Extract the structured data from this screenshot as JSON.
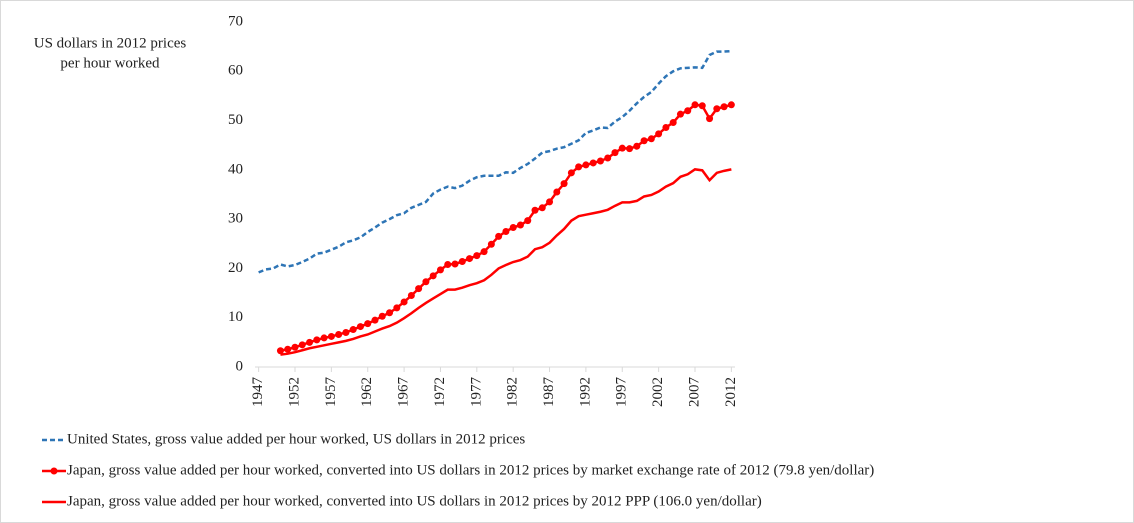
{
  "chart_data": {
    "type": "line",
    "ylabel": [
      "US dollars in 2012 prices",
      "per hour worked"
    ],
    "x": [
      1947,
      1948,
      1949,
      1950,
      1951,
      1952,
      1953,
      1954,
      1955,
      1956,
      1957,
      1958,
      1959,
      1960,
      1961,
      1962,
      1963,
      1964,
      1965,
      1966,
      1967,
      1968,
      1969,
      1970,
      1971,
      1972,
      1973,
      1974,
      1975,
      1976,
      1977,
      1978,
      1979,
      1980,
      1981,
      1982,
      1983,
      1984,
      1985,
      1986,
      1987,
      1988,
      1989,
      1990,
      1991,
      1992,
      1993,
      1994,
      1995,
      1996,
      1997,
      1998,
      1999,
      2000,
      2001,
      2002,
      2003,
      2004,
      2005,
      2006,
      2007,
      2008,
      2009,
      2010,
      2011,
      2012
    ],
    "xlim": [
      1946.5,
      2012.5
    ],
    "xticks": [
      1947,
      1952,
      1957,
      1962,
      1967,
      1972,
      1977,
      1982,
      1987,
      1992,
      1997,
      2002,
      2007,
      2012
    ],
    "ylim": [
      0,
      70
    ],
    "yticks": [
      0,
      10,
      20,
      30,
      40,
      50,
      60,
      70
    ],
    "series": [
      {
        "name": "United States, gross value added per hour worked, US dollars in 2012 prices",
        "color": "#2e75b6",
        "style": "dashed",
        "marker": false,
        "values": [
          19.2,
          19.8,
          20.0,
          20.8,
          20.4,
          20.7,
          21.3,
          22.0,
          23.0,
          23.2,
          23.8,
          24.4,
          25.3,
          25.7,
          26.3,
          27.4,
          28.3,
          29.3,
          30.0,
          30.8,
          31.2,
          32.3,
          32.9,
          33.5,
          35.2,
          36.0,
          36.6,
          36.3,
          36.8,
          37.8,
          38.5,
          38.8,
          38.8,
          38.8,
          39.5,
          39.4,
          40.4,
          41.2,
          42.3,
          43.5,
          43.8,
          44.3,
          44.6,
          45.3,
          46.0,
          47.5,
          48.0,
          48.6,
          48.5,
          49.8,
          50.7,
          52.0,
          53.5,
          54.8,
          55.8,
          57.5,
          59.0,
          60.0,
          60.6,
          60.7,
          60.8,
          60.7,
          63.3,
          64.0,
          64.0,
          64.1
        ]
      },
      {
        "name": "Japan, gross value added per hour worked, converted into US dollars in 2012 prices by market exchange rate of 2012 (79.8 yen/dollar)",
        "color": "#ff0000",
        "style": "solid",
        "marker": true,
        "values": [
          null,
          null,
          null,
          3.3,
          3.6,
          4.0,
          4.5,
          5.0,
          5.5,
          5.9,
          6.2,
          6.6,
          7.0,
          7.6,
          8.2,
          8.8,
          9.5,
          10.3,
          11.0,
          12.0,
          13.2,
          14.5,
          15.9,
          17.3,
          18.5,
          19.7,
          20.8,
          20.9,
          21.4,
          22.0,
          22.6,
          23.4,
          24.9,
          26.5,
          27.5,
          28.3,
          28.8,
          29.7,
          31.8,
          32.3,
          33.5,
          35.5,
          37.2,
          39.4,
          40.6,
          41.0,
          41.4,
          41.8,
          42.4,
          43.5,
          44.4,
          44.3,
          44.8,
          45.9,
          46.3,
          47.3,
          48.6,
          49.6,
          51.3,
          52.0,
          53.2,
          53.0,
          50.4,
          52.4,
          52.8,
          53.2
        ]
      },
      {
        "name": "Japan, gross value added per hour worked, converted into US dollars in 2012 prices by 2012 PPP (106.0 yen/dollar)",
        "color": "#ff0000",
        "style": "solid",
        "marker": false,
        "values": [
          null,
          null,
          null,
          2.5,
          2.7,
          3.0,
          3.4,
          3.8,
          4.1,
          4.4,
          4.7,
          5.0,
          5.3,
          5.7,
          6.2,
          6.6,
          7.2,
          7.8,
          8.3,
          9.0,
          9.9,
          10.9,
          12.0,
          13.0,
          13.9,
          14.8,
          15.7,
          15.7,
          16.1,
          16.6,
          17.0,
          17.6,
          18.7,
          20.0,
          20.7,
          21.3,
          21.7,
          22.4,
          23.9,
          24.3,
          25.2,
          26.7,
          28.0,
          29.7,
          30.6,
          30.9,
          31.2,
          31.5,
          31.9,
          32.7,
          33.4,
          33.4,
          33.7,
          34.6,
          34.9,
          35.6,
          36.6,
          37.3,
          38.6,
          39.1,
          40.1,
          39.9,
          37.9,
          39.4,
          39.8,
          40.1
        ]
      }
    ]
  }
}
